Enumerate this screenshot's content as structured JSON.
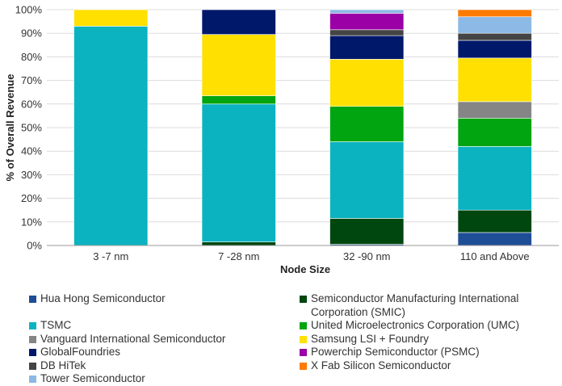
{
  "chart_data": {
    "type": "bar",
    "stacked": true,
    "title": "",
    "xlabel": "Node Size",
    "ylabel": "% of Overall Revenue",
    "ylim": [
      0,
      100
    ],
    "yticks": [
      "0%",
      "10%",
      "20%",
      "30%",
      "40%",
      "50%",
      "60%",
      "70%",
      "80%",
      "90%",
      "100%"
    ],
    "categories": [
      "3 -7 nm",
      "7 -28 nm",
      "32 -90 nm",
      "110 and Above"
    ],
    "grid": true,
    "legend_position": "bottom",
    "series": [
      {
        "name": "Hua Hong Semiconductor",
        "color": "#1f4e96",
        "values": [
          0,
          0,
          0.5,
          5.5
        ]
      },
      {
        "name": "Semiconductor Manufacturing International Corporation (SMIC)",
        "color": "#00470f",
        "values": [
          0,
          1.5,
          11,
          9.5
        ]
      },
      {
        "name": "TSMC",
        "color": "#0bb3c1",
        "values": [
          93,
          58.5,
          32.5,
          27
        ]
      },
      {
        "name": "United Microelectronics Corporation (UMC)",
        "color": "#00a50f",
        "values": [
          0,
          3.5,
          15,
          12
        ]
      },
      {
        "name": "Vanguard International Semiconductor",
        "color": "#858585",
        "values": [
          0,
          0,
          0,
          7
        ]
      },
      {
        "name": "Samsung LSI + Foundry",
        "color": "#ffe000",
        "values": [
          7,
          26,
          20,
          18.5
        ]
      },
      {
        "name": "GlobalFoundries",
        "color": "#00186a",
        "values": [
          0,
          10.5,
          10,
          7.5
        ]
      },
      {
        "name": "DB HiTek",
        "color": "#444444",
        "values": [
          0,
          0,
          2.5,
          3
        ]
      },
      {
        "name": "Powerchip Semiconductor (PSMC)",
        "color": "#9a00a5",
        "values": [
          0,
          0,
          7,
          0
        ]
      },
      {
        "name": "Tower Semiconductor",
        "color": "#8cb9e6",
        "values": [
          0,
          0,
          1.5,
          7
        ]
      },
      {
        "name": "X Fab Silicon Semiconductor",
        "color": "#ff7a00",
        "values": [
          0,
          0,
          0,
          3
        ]
      }
    ]
  },
  "legend": {
    "items": [
      {
        "label": "Hua Hong Semiconductor",
        "color": "#1f4e96",
        "name": "legend-hua-hong"
      },
      {
        "label": "Semiconductor Manufacturing International Corporation (SMIC)",
        "color": "#00470f",
        "name": "legend-smic"
      },
      {
        "label": "TSMC",
        "color": "#0bb3c1",
        "name": "legend-tsmc"
      },
      {
        "label": "United Microelectronics Corporation (UMC)",
        "color": "#00a50f",
        "name": "legend-umc"
      },
      {
        "label": "Vanguard International Semiconductor",
        "color": "#858585",
        "name": "legend-vanguard"
      },
      {
        "label": "Samsung LSI + Foundry",
        "color": "#ffe000",
        "name": "legend-samsung"
      },
      {
        "label": "GlobalFoundries",
        "color": "#00186a",
        "name": "legend-globalfoundries"
      },
      {
        "label": "Powerchip Semiconductor (PSMC)",
        "color": "#9a00a5",
        "name": "legend-psmc"
      },
      {
        "label": "DB HiTek",
        "color": "#444444",
        "name": "legend-db-hitek"
      },
      {
        "label": "X Fab Silicon Semiconductor",
        "color": "#ff7a00",
        "name": "legend-xfab"
      },
      {
        "label": "Tower Semiconductor",
        "color": "#8cb9e6",
        "name": "legend-tower"
      }
    ]
  }
}
